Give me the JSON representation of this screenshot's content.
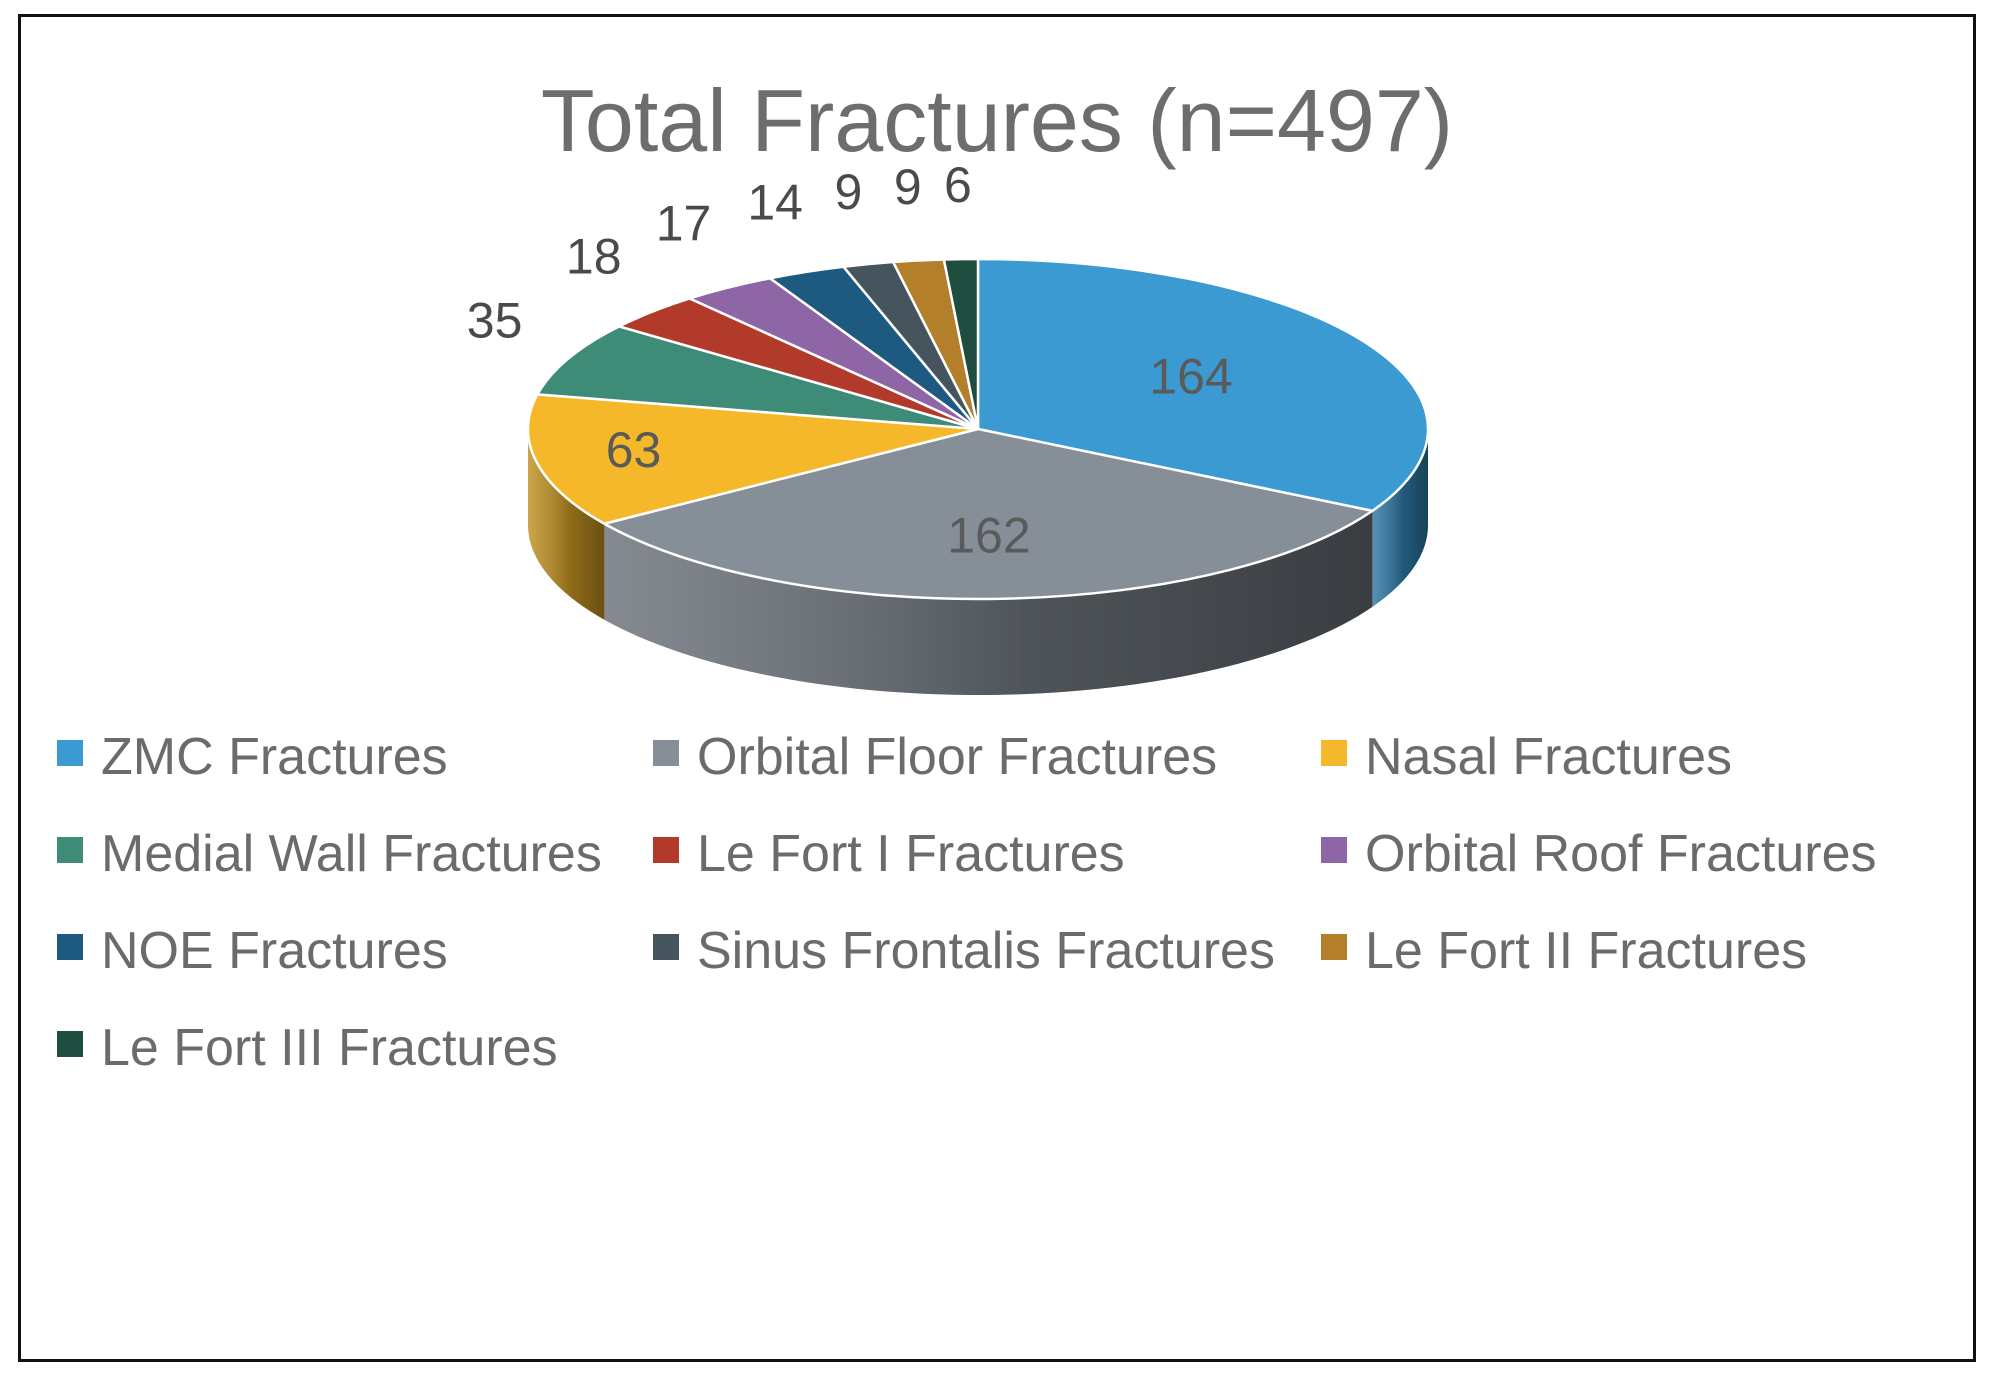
{
  "chart_data": {
    "type": "pie",
    "style": "3d-pie",
    "title": "Total Fractures (n=497)",
    "categories": [
      "ZMC Fractures",
      "Orbital Floor Fractures",
      "Nasal Fractures",
      "Medial Wall Fractures",
      "Le Fort I Fractures",
      "Orbital Roof Fractures",
      "NOE Fractures",
      "Sinus Frontalis Fractures",
      "Le Fort II Fractures",
      "Le Fort III Fractures"
    ],
    "values": [
      164,
      162,
      63,
      35,
      18,
      17,
      14,
      9,
      9,
      6
    ],
    "colors": [
      "#3a9ad1",
      "#868f98",
      "#f6b82b",
      "#3e8b78",
      "#b13a2b",
      "#8e66a6",
      "#1e5a80",
      "#46545d",
      "#b47f2b",
      "#1f4d3f"
    ],
    "labels": [
      "164",
      "162",
      "63",
      "35",
      "18",
      "17",
      "14",
      "9",
      "9",
      "6"
    ],
    "legend_position": "bottom"
  }
}
